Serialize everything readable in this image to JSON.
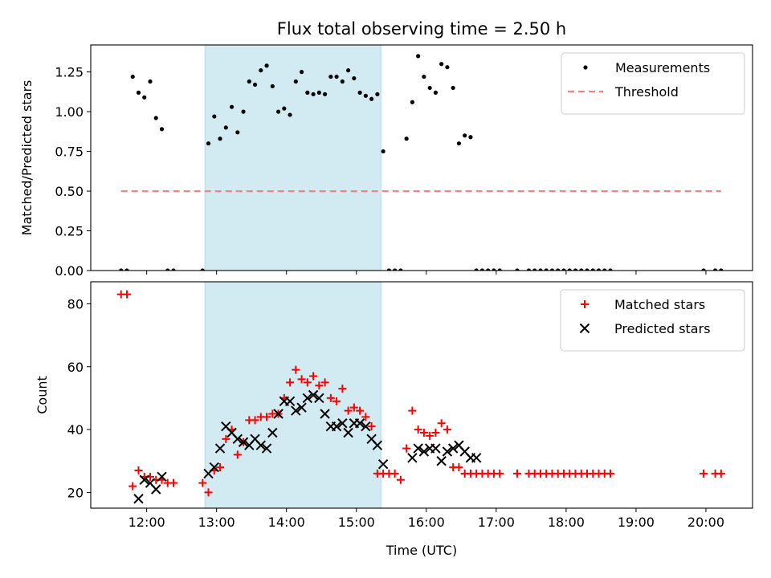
{
  "figure": {
    "title": "Flux total observing time = 2.50 h"
  },
  "chart_data": [
    {
      "type": "scatter",
      "panel": "top",
      "title": "Flux total observing time = 2.50 h",
      "xlabel": "",
      "ylabel": "Matched/Predicted stars",
      "xlim": [
        "11:12",
        "20:40"
      ],
      "ylim": [
        0.0,
        1.42
      ],
      "x_tick_labels": [
        "12:00",
        "13:00",
        "14:00",
        "15:00",
        "16:00",
        "17:00",
        "18:00",
        "19:00",
        "20:00"
      ],
      "y_ticks": [
        0.0,
        0.25,
        0.5,
        0.75,
        1.0,
        1.25
      ],
      "y_tick_labels": [
        "0.00",
        "0.25",
        "0.50",
        "0.75",
        "1.00",
        "1.25"
      ],
      "grid": false,
      "legend_position": "top-right",
      "shaded_span": {
        "x": [
          "12:50",
          "15:21"
        ],
        "color": "#add8e6"
      },
      "series": [
        {
          "name": "Measurements",
          "style": "dot",
          "color": "#000000",
          "x": [
            "11:38",
            "11:43",
            "11:48",
            "11:53",
            "11:58",
            "12:03",
            "12:08",
            "12:13",
            "12:18",
            "12:23",
            "12:48",
            "12:53",
            "12:58",
            "13:03",
            "13:08",
            "13:13",
            "13:18",
            "13:23",
            "13:28",
            "13:33",
            "13:38",
            "13:43",
            "13:48",
            "13:53",
            "13:58",
            "14:03",
            "14:08",
            "14:13",
            "14:18",
            "14:23",
            "14:28",
            "14:33",
            "14:38",
            "14:43",
            "14:48",
            "14:53",
            "14:58",
            "15:03",
            "15:08",
            "15:13",
            "15:18",
            "15:23",
            "15:28",
            "15:33",
            "15:38",
            "15:43",
            "15:48",
            "15:53",
            "15:58",
            "16:03",
            "16:08",
            "16:13",
            "16:18",
            "16:23",
            "16:28",
            "16:33",
            "16:38",
            "16:43",
            "16:48",
            "16:53",
            "16:58",
            "17:03",
            "17:18",
            "17:28",
            "17:33",
            "17:38",
            "17:43",
            "17:48",
            "17:53",
            "17:58",
            "18:03",
            "18:08",
            "18:13",
            "18:18",
            "18:23",
            "18:28",
            "18:33",
            "18:38",
            "19:58",
            "20:08",
            "20:13"
          ],
          "y": [
            0.0,
            0.0,
            1.22,
            1.12,
            1.09,
            1.19,
            0.96,
            0.89,
            0.0,
            0.0,
            0.0,
            0.8,
            0.97,
            0.83,
            0.9,
            1.03,
            0.87,
            1.0,
            1.19,
            1.17,
            1.26,
            1.29,
            1.16,
            1.0,
            1.02,
            0.98,
            1.19,
            1.25,
            1.12,
            1.11,
            1.12,
            1.11,
            1.22,
            1.22,
            1.19,
            1.26,
            1.21,
            1.12,
            1.1,
            1.08,
            1.11,
            0.75,
            0.0,
            0.0,
            0.0,
            0.83,
            1.06,
            1.35,
            1.22,
            1.15,
            1.12,
            1.3,
            1.28,
            1.15,
            0.8,
            0.85,
            0.84,
            0.0,
            0.0,
            0.0,
            0.0,
            0.0,
            0.0,
            0.0,
            0.0,
            0.0,
            0.0,
            0.0,
            0.0,
            0.0,
            0.0,
            0.0,
            0.0,
            0.0,
            0.0,
            0.0,
            0.0,
            0.0,
            0.0,
            0.0,
            0.0
          ]
        },
        {
          "name": "Threshold",
          "style": "dashed-line",
          "color": "#ff7f7f",
          "x": [
            "11:38",
            "20:13"
          ],
          "y": [
            0.5,
            0.5
          ]
        }
      ]
    },
    {
      "type": "scatter",
      "panel": "bottom",
      "title": "",
      "xlabel": "Time (UTC)",
      "ylabel": "Count",
      "xlim": [
        "11:12",
        "20:40"
      ],
      "ylim": [
        15,
        87
      ],
      "x_tick_labels": [
        "12:00",
        "13:00",
        "14:00",
        "15:00",
        "16:00",
        "17:00",
        "18:00",
        "19:00",
        "20:00"
      ],
      "y_ticks": [
        20,
        40,
        60,
        80
      ],
      "y_tick_labels": [
        "20",
        "40",
        "60",
        "80"
      ],
      "grid": false,
      "legend_position": "top-right",
      "shaded_span": {
        "x": [
          "12:50",
          "15:21"
        ],
        "color": "#add8e6"
      },
      "series": [
        {
          "name": "Matched stars",
          "style": "plus",
          "color": "#ff0000",
          "x": [
            "11:38",
            "11:43",
            "11:48",
            "11:53",
            "11:58",
            "12:03",
            "12:08",
            "12:13",
            "12:18",
            "12:23",
            "12:48",
            "12:53",
            "12:58",
            "13:03",
            "13:08",
            "13:13",
            "13:18",
            "13:23",
            "13:28",
            "13:33",
            "13:38",
            "13:43",
            "13:48",
            "13:53",
            "13:58",
            "14:03",
            "14:08",
            "14:13",
            "14:18",
            "14:23",
            "14:28",
            "14:33",
            "14:38",
            "14:43",
            "14:48",
            "14:53",
            "14:58",
            "15:03",
            "15:08",
            "15:13",
            "15:18",
            "15:23",
            "15:28",
            "15:33",
            "15:38",
            "15:43",
            "15:48",
            "15:53",
            "15:58",
            "16:03",
            "16:08",
            "16:13",
            "16:18",
            "16:23",
            "16:28",
            "16:33",
            "16:38",
            "16:43",
            "16:48",
            "16:53",
            "16:58",
            "17:03",
            "17:18",
            "17:28",
            "17:33",
            "17:38",
            "17:43",
            "17:48",
            "17:53",
            "17:58",
            "18:03",
            "18:08",
            "18:13",
            "18:18",
            "18:23",
            "18:28",
            "18:33",
            "18:38",
            "19:58",
            "20:08",
            "20:13"
          ],
          "y": [
            83,
            83,
            22,
            27,
            25,
            25,
            24,
            24,
            23,
            23,
            23,
            20,
            27,
            28,
            37,
            40,
            32,
            36,
            43,
            43,
            44,
            44,
            45,
            45,
            50,
            55,
            59,
            56,
            55,
            57,
            54,
            55,
            50,
            49,
            53,
            46,
            47,
            46,
            44,
            41,
            26,
            26,
            26,
            26,
            24,
            34,
            46,
            40,
            39,
            38,
            39,
            42,
            40,
            28,
            28,
            26,
            26,
            26,
            26,
            26,
            26,
            26,
            26,
            26,
            26,
            26,
            26,
            26,
            26,
            26,
            26,
            26,
            26,
            26,
            26,
            26,
            26,
            26,
            26,
            26,
            26
          ]
        },
        {
          "name": "Predicted stars",
          "style": "x",
          "color": "#000000",
          "x": [
            "11:53",
            "11:58",
            "12:03",
            "12:08",
            "12:13",
            "12:53",
            "12:58",
            "13:03",
            "13:08",
            "13:13",
            "13:18",
            "13:23",
            "13:28",
            "13:33",
            "13:38",
            "13:43",
            "13:48",
            "13:53",
            "13:58",
            "14:03",
            "14:08",
            "14:13",
            "14:18",
            "14:23",
            "14:28",
            "14:33",
            "14:38",
            "14:43",
            "14:48",
            "14:53",
            "14:58",
            "15:03",
            "15:08",
            "15:13",
            "15:18",
            "15:23",
            "15:48",
            "15:53",
            "15:58",
            "16:03",
            "16:08",
            "16:13",
            "16:18",
            "16:23",
            "16:28",
            "16:33",
            "16:38",
            "16:43"
          ],
          "y": [
            18,
            24,
            23,
            21,
            25,
            26,
            28,
            34,
            41,
            39,
            37,
            36,
            35,
            37,
            35,
            34,
            39,
            45,
            49,
            49,
            46,
            47,
            50,
            51,
            50,
            45,
            41,
            41,
            42,
            39,
            42,
            42,
            41,
            37,
            35,
            29,
            31,
            34,
            33,
            34,
            34,
            30,
            33,
            34,
            35,
            33,
            31,
            31
          ]
        }
      ]
    }
  ]
}
